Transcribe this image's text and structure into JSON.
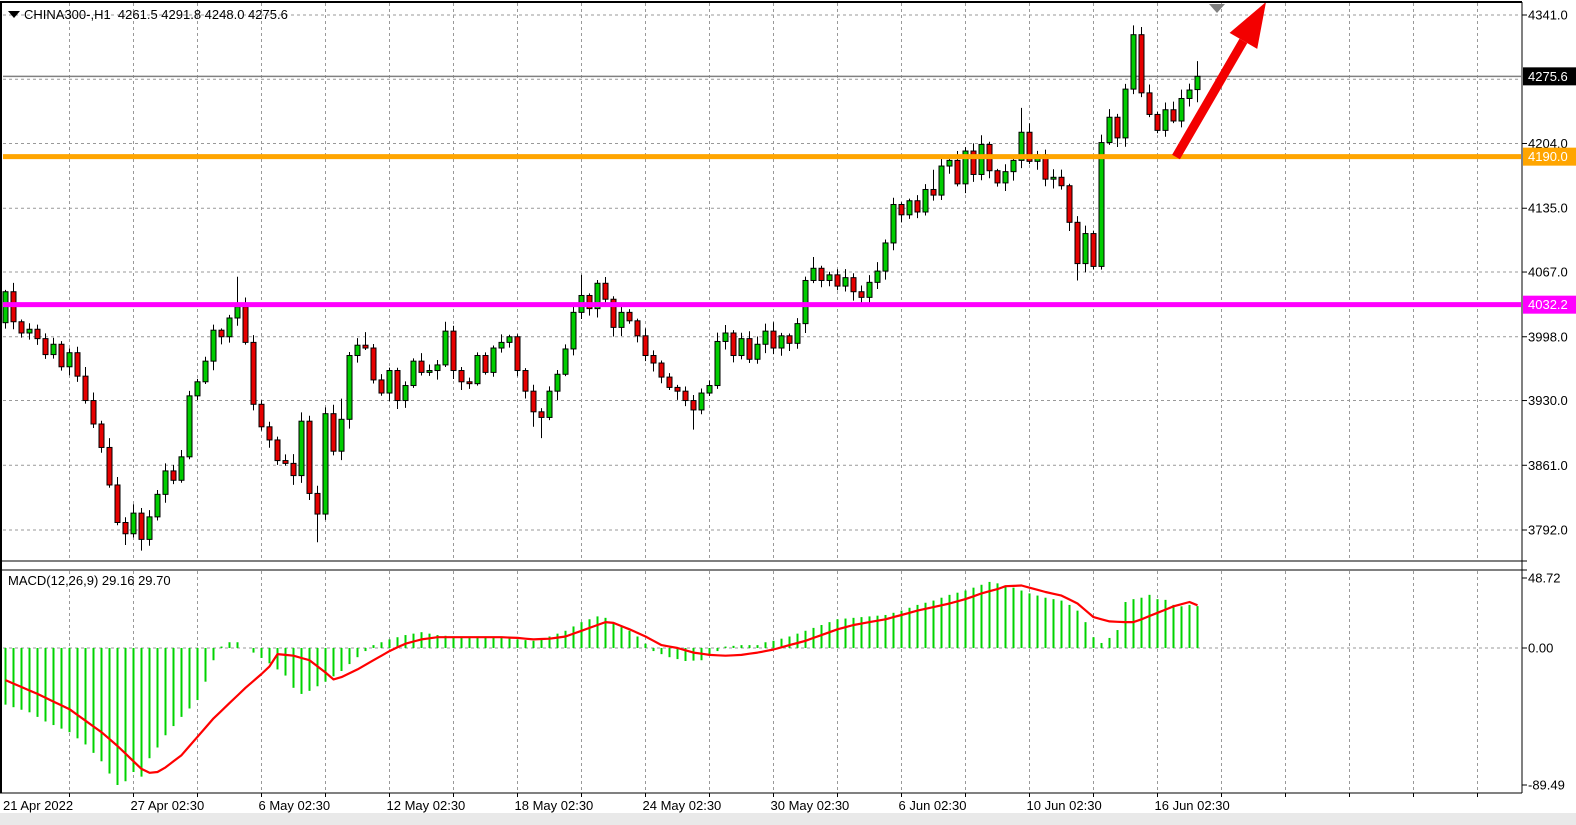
{
  "header": {
    "instrument_line": "CHINA300-,H1  4261.5 4291.8 4248.0 4275.6"
  },
  "indicator_pane": {
    "label": "MACD(12,26,9) 29.16 29.70"
  },
  "price_axis": {
    "plain_labels": [
      {
        "value": 4341.0,
        "text": "4341.0"
      },
      {
        "value": 4204.0,
        "text": "4204.0"
      },
      {
        "value": 4135.0,
        "text": "4135.0"
      },
      {
        "value": 4067.0,
        "text": "4067.0"
      },
      {
        "value": 3998.0,
        "text": "3998.0"
      },
      {
        "value": 3930.0,
        "text": "3930.0"
      },
      {
        "value": 3861.0,
        "text": "3861.0"
      },
      {
        "value": 3792.0,
        "text": "3792.0"
      }
    ],
    "unlabeled_gridlines": [
      4272.5
    ],
    "current_price": {
      "value": 4275.6,
      "text": "4275.6",
      "bg": "#000000",
      "fg": "#ffffff",
      "line_color": "#808080"
    }
  },
  "horizontal_lines": [
    {
      "value": 4190.0,
      "text": "4190.0",
      "color": "#ffa500"
    },
    {
      "value": 4032.2,
      "text": "4032.2",
      "color": "#ff00ff"
    }
  ],
  "time_axis": {
    "labels": [
      "21 Apr 2022",
      "27 Apr 02:30",
      "6 May 02:30",
      "12 May 02:30",
      "18 May 02:30",
      "24 May 02:30",
      "30 May 02:30",
      "6 Jun 02:30",
      "10 Jun 02:30",
      "16 Jun 02:30"
    ]
  },
  "macd_axis": {
    "labels": [
      {
        "value": 48.72,
        "text": "48.72"
      },
      {
        "value": 0,
        "text": "0.00"
      },
      {
        "value": -89.49,
        "text": "-89.49"
      }
    ]
  },
  "colors": {
    "bull": "#00cd00",
    "bear": "#e60000",
    "outline": "#000000",
    "grid": "#999999",
    "frame": "#000000",
    "macd_hist": "#00d300",
    "macd_signal": "#ff0000",
    "arrow": "#f30000",
    "shift_marker": "#808080",
    "bottom_strip": "#e9e9e9",
    "axis_text": "#000000"
  },
  "chart_data": {
    "type": "candlestick",
    "symbol": "CHINA300-",
    "timeframe": "H1",
    "title": "CHINA300-,H1",
    "current_bar": {
      "open": 4261.5,
      "high": 4291.8,
      "low": 4248.0,
      "close": 4275.6
    },
    "ylim_main": [
      3758,
      4355
    ],
    "price_gridlines": [
      4341.0,
      4272.5,
      4204.0,
      4135.0,
      4067.0,
      3998.0,
      3930.0,
      3861.0,
      3792.0
    ],
    "support_resistance": [
      4190.0,
      4032.2
    ],
    "first_open": 4013,
    "closes": [
      4046,
      4014,
      4002,
      4006,
      3996,
      3979,
      3990,
      3966,
      3981,
      3956,
      3930,
      3905,
      3880,
      3840,
      3800,
      3788,
      3810,
      3782,
      3806,
      3830,
      3855,
      3845,
      3870,
      3935,
      3950,
      3972,
      4005,
      3998,
      4018,
      4030,
      3992,
      3926,
      3902,
      3888,
      3866,
      3863,
      3850,
      3908,
      3831,
      3809,
      3916,
      3876,
      3910,
      3978,
      3989,
      3986,
      3952,
      3938,
      3962,
      3930,
      3946,
      3972,
      3960,
      3962,
      3968,
      4004,
      3962,
      3950,
      3948,
      3978,
      3960,
      3986,
      3992,
      3998,
      3962,
      3940,
      3918,
      3912,
      3940,
      3958,
      3985,
      4024,
      4042,
      4028,
      4055,
      4038,
      4008,
      4024,
      4015,
      3999,
      3978,
      3970,
      3955,
      3944,
      3940,
      3930,
      3920,
      3938,
      3946,
      3993,
      4002,
      3978,
      3996,
      3974,
      3990,
      4004,
      3986,
      3999,
      3991,
      4012,
      4058,
      4071,
      4058,
      4064,
      4052,
      4061,
      4046,
      4040,
      4056,
      4068,
      4098,
      4139,
      4128,
      4143,
      4131,
      4155,
      4149,
      4180,
      4186,
      4161,
      4196,
      4171,
      4203,
      4175,
      4162,
      4174,
      4186,
      4216,
      4185,
      4192,
      4166,
      4168,
      4159,
      4120,
      4076,
      4108,
      4073,
      4205,
      4232,
      4210,
      4262,
      4320,
      4258,
      4235,
      4218,
      4240,
      4228,
      4252,
      4261,
      4275.6
    ],
    "wick_overrides": {
      "15": {
        "low": 3776
      },
      "17": {
        "low": 3770
      },
      "29": {
        "high": 4062
      },
      "39": {
        "low": 3779
      },
      "42": {
        "high": 3932
      },
      "45": {
        "high": 4003
      },
      "55": {
        "high": 4014
      },
      "66": {
        "low": 3902
      },
      "67": {
        "low": 3890
      },
      "72": {
        "high": 4064
      },
      "86": {
        "low": 3899
      },
      "101": {
        "high": 4083
      },
      "107": {
        "low": 4030
      },
      "116": {
        "high": 4176
      },
      "127": {
        "high": 4242
      },
      "134": {
        "low": 4058
      },
      "141": {
        "high": 4330
      },
      "149": {
        "high": 4291.8,
        "low": 4248.0
      }
    },
    "indicator": {
      "name": "MACD",
      "fast": 12,
      "slow": 26,
      "signal_period": 9,
      "current_macd": 29.16,
      "current_signal": 29.7,
      "scale_max": 48.72,
      "scale_min": -89.49,
      "hist_anchors": [
        [
          0,
          -37
        ],
        [
          3,
          -42
        ],
        [
          5,
          -48
        ],
        [
          8,
          -55
        ],
        [
          10,
          -63
        ],
        [
          12,
          -74
        ],
        [
          13,
          -82
        ],
        [
          14,
          -89.5
        ],
        [
          15,
          -87
        ],
        [
          16,
          -81
        ],
        [
          17,
          -84
        ],
        [
          18,
          -72
        ],
        [
          19,
          -65
        ],
        [
          20,
          -57
        ],
        [
          22,
          -45
        ],
        [
          24,
          -34
        ],
        [
          25,
          -22
        ],
        [
          26,
          -8
        ],
        [
          27,
          1
        ],
        [
          28,
          4
        ],
        [
          29,
          4
        ],
        [
          30,
          0
        ],
        [
          31,
          -3
        ],
        [
          33,
          -10
        ],
        [
          35,
          -18
        ],
        [
          36,
          -26
        ],
        [
          37,
          -30
        ],
        [
          38,
          -28
        ],
        [
          40,
          -22
        ],
        [
          42,
          -15
        ],
        [
          44,
          -6
        ],
        [
          45,
          -2
        ],
        [
          46,
          2
        ],
        [
          48,
          6
        ],
        [
          50,
          9
        ],
        [
          52,
          11
        ],
        [
          54,
          9
        ],
        [
          56,
          8
        ],
        [
          58,
          7
        ],
        [
          60,
          7
        ],
        [
          62,
          8
        ],
        [
          64,
          6
        ],
        [
          66,
          5
        ],
        [
          68,
          8
        ],
        [
          70,
          12
        ],
        [
          72,
          18
        ],
        [
          74,
          22
        ],
        [
          75,
          21
        ],
        [
          76,
          17
        ],
        [
          78,
          12
        ],
        [
          79,
          8
        ],
        [
          80,
          3
        ],
        [
          81,
          -2
        ],
        [
          83,
          -6
        ],
        [
          85,
          -8.5
        ],
        [
          87,
          -8
        ],
        [
          88,
          -5
        ],
        [
          89,
          -2
        ],
        [
          90,
          1
        ],
        [
          92,
          2
        ],
        [
          94,
          2
        ],
        [
          95,
          4
        ],
        [
          96,
          5
        ],
        [
          98,
          8
        ],
        [
          100,
          12
        ],
        [
          102,
          16
        ],
        [
          104,
          20
        ],
        [
          106,
          21
        ],
        [
          108,
          22
        ],
        [
          110,
          23
        ],
        [
          112,
          26
        ],
        [
          114,
          30
        ],
        [
          116,
          33
        ],
        [
          118,
          37
        ],
        [
          120,
          40
        ],
        [
          122,
          44
        ],
        [
          123,
          46
        ],
        [
          124,
          45
        ],
        [
          126,
          42
        ],
        [
          128,
          38
        ],
        [
          130,
          35
        ],
        [
          132,
          33
        ],
        [
          133,
          30
        ],
        [
          134,
          26
        ],
        [
          135,
          18
        ],
        [
          136,
          7.5
        ],
        [
          137,
          3.5
        ],
        [
          138,
          7
        ],
        [
          139,
          12.5
        ],
        [
          140,
          32
        ],
        [
          141,
          34
        ],
        [
          142,
          35
        ],
        [
          143,
          37
        ],
        [
          144,
          34
        ],
        [
          145,
          33.5
        ],
        [
          146,
          30
        ],
        [
          147,
          29
        ],
        [
          148,
          30
        ],
        [
          149,
          29.16
        ]
      ],
      "signal_anchors": [
        [
          0,
          -21
        ],
        [
          4,
          -30
        ],
        [
          8,
          -40
        ],
        [
          12,
          -55
        ],
        [
          14,
          -64
        ],
        [
          16,
          -74
        ],
        [
          17,
          -79
        ],
        [
          18,
          -81.5
        ],
        [
          19,
          -81
        ],
        [
          20,
          -78
        ],
        [
          22,
          -70
        ],
        [
          24,
          -58
        ],
        [
          26,
          -46
        ],
        [
          28,
          -36
        ],
        [
          30,
          -26
        ],
        [
          32,
          -17
        ],
        [
          33,
          -12
        ],
        [
          34,
          -4
        ],
        [
          36,
          -5
        ],
        [
          38,
          -8
        ],
        [
          40,
          -16
        ],
        [
          41,
          -20.5
        ],
        [
          42,
          -19
        ],
        [
          44,
          -14
        ],
        [
          46,
          -8
        ],
        [
          48,
          -2
        ],
        [
          50,
          3
        ],
        [
          52,
          6
        ],
        [
          54,
          7.5
        ],
        [
          58,
          7.5
        ],
        [
          62,
          7.5
        ],
        [
          64,
          7
        ],
        [
          66,
          6
        ],
        [
          68,
          6.5
        ],
        [
          70,
          8
        ],
        [
          72,
          12
        ],
        [
          74,
          16
        ],
        [
          75,
          18
        ],
        [
          76,
          17.5
        ],
        [
          78,
          13
        ],
        [
          80,
          8
        ],
        [
          82,
          2
        ],
        [
          84,
          0
        ],
        [
          86,
          -3
        ],
        [
          88,
          -4.5
        ],
        [
          90,
          -5
        ],
        [
          92,
          -4.5
        ],
        [
          94,
          -3
        ],
        [
          96,
          -1
        ],
        [
          98,
          2
        ],
        [
          100,
          5
        ],
        [
          102,
          9
        ],
        [
          104,
          13
        ],
        [
          106,
          16
        ],
        [
          108,
          18
        ],
        [
          110,
          20
        ],
        [
          112,
          23
        ],
        [
          114,
          26
        ],
        [
          116,
          28.5
        ],
        [
          118,
          31
        ],
        [
          120,
          34
        ],
        [
          122,
          38
        ],
        [
          124,
          41
        ],
        [
          125,
          43
        ],
        [
          127,
          43.5
        ],
        [
          128,
          42
        ],
        [
          130,
          39
        ],
        [
          132,
          36.5
        ],
        [
          134,
          31
        ],
        [
          136,
          21.5
        ],
        [
          138,
          18.5
        ],
        [
          140,
          18
        ],
        [
          141,
          18
        ],
        [
          142,
          20
        ],
        [
          144,
          24.5
        ],
        [
          146,
          29
        ],
        [
          148,
          32
        ],
        [
          149,
          29.7
        ]
      ]
    }
  },
  "decorations": {
    "trend_arrow": {
      "description": "thick red up-right arrow from 4190 line to top right"
    },
    "chart_shift_marker": {
      "description": "gray down triangle at top marking chart shift"
    },
    "oneclick_toggle": {
      "description": "black down triangle before symbol name"
    }
  }
}
